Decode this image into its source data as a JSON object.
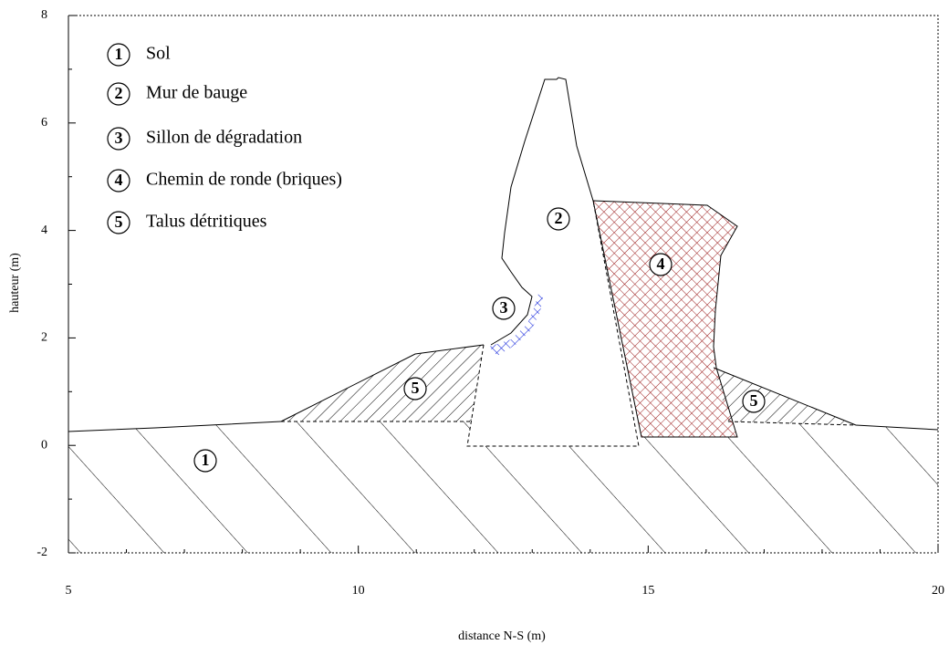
{
  "chart_data": {
    "type": "cross-section",
    "xlabel": "distance N-S (m)",
    "ylabel": "hauteur (m)",
    "xlim": [
      5,
      20
    ],
    "ylim": [
      -2,
      8
    ],
    "xticks": [
      5,
      10,
      15,
      20
    ],
    "yticks": [
      -2,
      0,
      2,
      4,
      6,
      8
    ],
    "legend": [
      {
        "symbol": "1",
        "label": "Sol"
      },
      {
        "symbol": "2",
        "label": "Mur de bauge"
      },
      {
        "symbol": "3",
        "label": "Sillon de dégradation"
      },
      {
        "symbol": "4",
        "label": "Chemin de ronde (briques)"
      },
      {
        "symbol": "5",
        "label": "Talus détritiques"
      }
    ],
    "region_labels": [
      "1",
      "2",
      "3",
      "4",
      "5",
      "5"
    ]
  }
}
